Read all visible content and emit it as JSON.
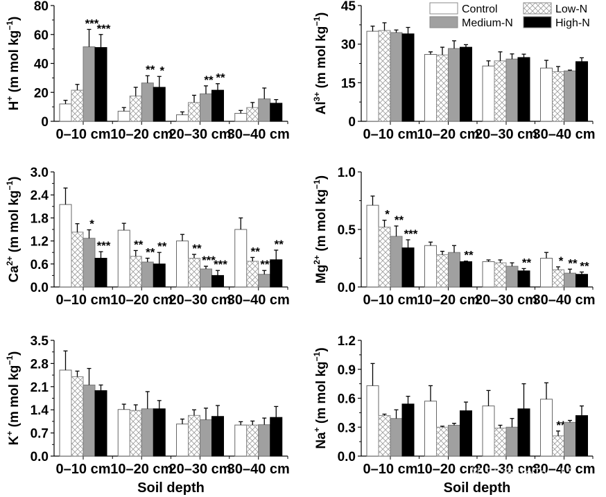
{
  "chart_data": [
    {
      "type": "bar",
      "id": "h",
      "ylabel_main": "H",
      "ylabel_sup": "+",
      "ylabel_unit": " (m mol kg",
      "ylabel_unit_sup": "−1",
      "ylabel_end": ")",
      "ylim": [
        0,
        80
      ],
      "yticks": [
        "0",
        "20",
        "40",
        "60",
        "80"
      ],
      "categories": [
        "0–10 cm",
        "10–20 cm",
        "20–30 cm",
        "30–40 cm"
      ],
      "xlabel": "",
      "series": [
        {
          "name": "Control",
          "values": [
            12,
            7,
            4.5,
            5.5
          ],
          "errors": [
            2.5,
            2.5,
            2,
            2
          ]
        },
        {
          "name": "Low-N",
          "values": [
            21.5,
            17.5,
            13,
            9.5
          ],
          "errors": [
            4,
            6,
            5,
            3.5
          ]
        },
        {
          "name": "Medium-N",
          "values": [
            51.5,
            26.5,
            19,
            15.5
          ],
          "errors": [
            12,
            5,
            5.5,
            7.5
          ]
        },
        {
          "name": "High-N",
          "values": [
            51,
            23.5,
            21.5,
            12.5
          ],
          "errors": [
            9,
            7.5,
            4.5,
            2.5
          ]
        }
      ],
      "significance": [
        [
          "",
          "",
          "",
          ""
        ],
        [
          "",
          "",
          "",
          ""
        ],
        [
          "***",
          "**",
          "**",
          ""
        ],
        [
          "***",
          "*",
          "**",
          ""
        ]
      ]
    },
    {
      "type": "bar",
      "id": "al",
      "ylabel_main": "Al",
      "ylabel_sup": "3+",
      "ylabel_unit": " (m mol kg",
      "ylabel_unit_sup": "−1",
      "ylabel_end": ")",
      "ylim": [
        0,
        45
      ],
      "yticks": [
        "0",
        "15",
        "30",
        "45"
      ],
      "categories": [
        "0–10 cm",
        "10–20 cm",
        "20–30 cm",
        "30–40 cm"
      ],
      "xlabel": "",
      "series": [
        {
          "name": "Control",
          "values": [
            35,
            26,
            21.5,
            20.7
          ],
          "errors": [
            2,
            1,
            2,
            3
          ]
        },
        {
          "name": "Low-N",
          "values": [
            35.3,
            25.8,
            23.5,
            19.3
          ],
          "errors": [
            3,
            3,
            3.5,
            2
          ]
        },
        {
          "name": "Medium-N",
          "values": [
            34.5,
            28.3,
            24.2,
            19.6
          ],
          "errors": [
            1,
            3,
            2,
            0.3
          ]
        },
        {
          "name": "High-N",
          "values": [
            34,
            28.8,
            24.8,
            23.2
          ],
          "errors": [
            2.5,
            1,
            1.3,
            1.5
          ]
        }
      ],
      "significance": [
        [
          "",
          "",
          "",
          ""
        ],
        [
          "",
          "",
          "",
          ""
        ],
        [
          "",
          "",
          "",
          ""
        ],
        [
          "",
          "",
          "",
          ""
        ]
      ]
    },
    {
      "type": "bar",
      "id": "ca",
      "ylabel_main": "Ca",
      "ylabel_sup": "2+",
      "ylabel_unit": " (m mol kg",
      "ylabel_unit_sup": "−1",
      "ylabel_end": ")",
      "ylim": [
        0,
        3.0
      ],
      "yticks": [
        "0.0",
        "0.6",
        "1.2",
        "1.8",
        "2.4",
        "3.0"
      ],
      "categories": [
        "0–10 cm",
        "10–20 cm",
        "20–30 cm",
        "30–40 cm"
      ],
      "xlabel": "",
      "series": [
        {
          "name": "Control",
          "values": [
            2.15,
            1.48,
            1.2,
            1.5
          ],
          "errors": [
            0.43,
            0.18,
            0.17,
            0.3
          ]
        },
        {
          "name": "Low-N",
          "values": [
            1.43,
            0.8,
            0.75,
            0.67
          ],
          "errors": [
            0.22,
            0.15,
            0.1,
            0.1
          ]
        },
        {
          "name": "Medium-N",
          "values": [
            1.27,
            0.65,
            0.47,
            0.33
          ],
          "errors": [
            0.22,
            0.1,
            0.07,
            0.1
          ]
        },
        {
          "name": "High-N",
          "values": [
            0.75,
            0.6,
            0.3,
            0.71
          ],
          "errors": [
            0.17,
            0.3,
            0.13,
            0.25
          ]
        }
      ],
      "significance": [
        [
          "",
          "",
          "",
          ""
        ],
        [
          "",
          "**",
          "**",
          "**"
        ],
        [
          "*",
          "**",
          "***",
          "***"
        ],
        [
          "***",
          "**",
          "***",
          "**"
        ]
      ]
    },
    {
      "type": "bar",
      "id": "mg",
      "ylabel_main": "Mg",
      "ylabel_sup": "2+",
      "ylabel_unit": " (m mol kg",
      "ylabel_unit_sup": "−1",
      "ylabel_end": ")",
      "ylim": [
        0,
        1.0
      ],
      "yticks": [
        "0.0",
        "0.5",
        "1.0"
      ],
      "categories": [
        "0–10 cm",
        "10–20 cm",
        "20–30 cm",
        "30–40 cm"
      ],
      "xlabel": "",
      "series": [
        {
          "name": "Control",
          "values": [
            0.71,
            0.36,
            0.22,
            0.25
          ],
          "errors": [
            0.08,
            0.03,
            0.015,
            0.05
          ]
        },
        {
          "name": "Low-N",
          "values": [
            0.52,
            0.28,
            0.21,
            0.15
          ],
          "errors": [
            0.06,
            0.03,
            0.025,
            0.025
          ]
        },
        {
          "name": "Medium-N",
          "values": [
            0.44,
            0.3,
            0.18,
            0.12
          ],
          "errors": [
            0.09,
            0.06,
            0.03,
            0.035
          ]
        },
        {
          "name": "High-N",
          "values": [
            0.34,
            0.22,
            0.14,
            0.11
          ],
          "errors": [
            0.07,
            0.005,
            0.02,
            0.02
          ]
        }
      ],
      "significance": [
        [
          "",
          "",
          "",
          ""
        ],
        [
          "*",
          "",
          "",
          "*"
        ],
        [
          "**",
          "",
          "",
          "**"
        ],
        [
          "***",
          "**",
          "**",
          "**"
        ]
      ]
    },
    {
      "type": "bar",
      "id": "k",
      "ylabel_main": "K",
      "ylabel_sup": "+",
      "ylabel_unit": " (m mol kg",
      "ylabel_unit_sup": "−1",
      "ylabel_end": ")",
      "ylim": [
        0,
        3.5
      ],
      "yticks": [
        "0.0",
        "0.7",
        "1.4",
        "2.1",
        "2.8",
        "3.5"
      ],
      "categories": [
        "0–10 cm",
        "10–20 cm",
        "20–30 cm",
        "30–40 cm"
      ],
      "xlabel": "Soil depth",
      "series": [
        {
          "name": "Control",
          "values": [
            2.6,
            1.41,
            0.97,
            0.94
          ],
          "errors": [
            0.58,
            0.16,
            0.15,
            0.1
          ]
        },
        {
          "name": "Low-N",
          "values": [
            2.4,
            1.38,
            1.23,
            0.94
          ],
          "errors": [
            0.17,
            0.17,
            0.17,
            0.12
          ]
        },
        {
          "name": "Medium-N",
          "values": [
            2.15,
            1.43,
            1.1,
            0.95
          ],
          "errors": [
            0.5,
            0.52,
            0.35,
            0.2
          ]
        },
        {
          "name": "High-N",
          "values": [
            1.98,
            1.43,
            1.2,
            1.17
          ],
          "errors": [
            0.17,
            0.25,
            0.33,
            0.33
          ]
        }
      ],
      "significance": [
        [
          "",
          "",
          "",
          ""
        ],
        [
          "",
          "",
          "",
          ""
        ],
        [
          "",
          "",
          "",
          ""
        ],
        [
          "",
          "",
          "",
          ""
        ]
      ]
    },
    {
      "type": "bar",
      "id": "na",
      "ylabel_main": "Na",
      "ylabel_sup": "+",
      "ylabel_unit": " (m mol kg",
      "ylabel_unit_sup": "−1",
      "ylabel_end": ")",
      "ylim": [
        0,
        1.2
      ],
      "yticks": [
        "0.0",
        "0.3",
        "0.6",
        "0.9",
        "1.2"
      ],
      "categories": [
        "0–10 cm",
        "10–20 cm",
        "20–30 cm",
        "30–40 cm"
      ],
      "xlabel": "Soil depth",
      "series": [
        {
          "name": "Control",
          "values": [
            0.73,
            0.57,
            0.52,
            0.59
          ],
          "errors": [
            0.23,
            0.16,
            0.16,
            0.17
          ]
        },
        {
          "name": "Low-N",
          "values": [
            0.42,
            0.3,
            0.29,
            0.21
          ],
          "errors": [
            0.015,
            0.01,
            0.03,
            0.05
          ]
        },
        {
          "name": "Medium-N",
          "values": [
            0.39,
            0.32,
            0.3,
            0.35
          ],
          "errors": [
            0.09,
            0.02,
            0.09,
            0.02
          ]
        },
        {
          "name": "High-N",
          "values": [
            0.54,
            0.47,
            0.49,
            0.42
          ],
          "errors": [
            0.08,
            0.09,
            0.26,
            0.1
          ]
        }
      ],
      "significance": [
        [
          "",
          "",
          "",
          ""
        ],
        [
          "",
          "",
          "",
          "**"
        ],
        [
          "",
          "",
          "",
          ""
        ],
        [
          "",
          "",
          "",
          ""
        ]
      ]
    }
  ],
  "legend": {
    "placement": "top-right",
    "items": [
      {
        "name": "Control",
        "fill": "#ffffff",
        "pattern": "none"
      },
      {
        "name": "Low-N",
        "fill": "#ffffff",
        "pattern": "crosshatch"
      },
      {
        "name": "Medium-N",
        "fill": "#a0a0a0",
        "pattern": "none"
      },
      {
        "name": "High-N",
        "fill": "#000000",
        "pattern": "none"
      }
    ]
  },
  "watermark": "知乎 @JinTao.Li"
}
